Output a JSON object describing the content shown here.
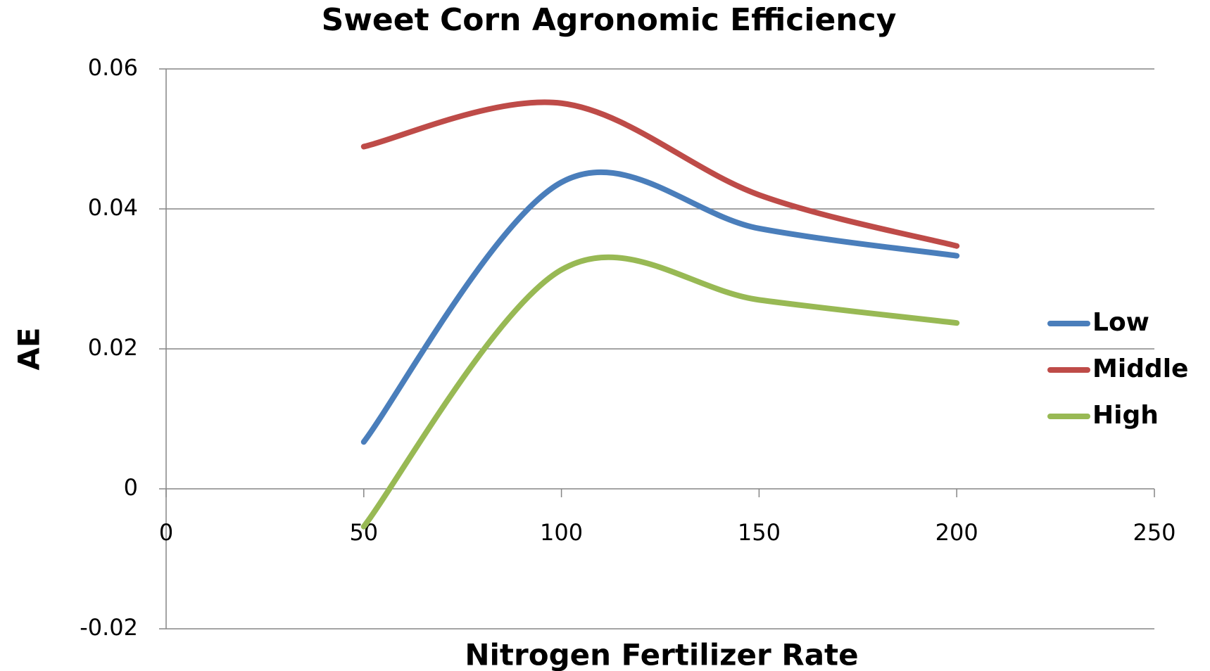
{
  "chart_data": {
    "type": "line",
    "title": "Sweet Corn Agronomic Efficiency",
    "x_label": "Nitrogen Fertilizer Rate",
    "y_label": "AE",
    "x": [
      50,
      100,
      150,
      200
    ],
    "series": [
      {
        "name": "Low",
        "color": "#4a7ebb",
        "values": [
          0.0067,
          0.0438,
          0.0372,
          0.0333
        ]
      },
      {
        "name": "Middle",
        "color": "#be4b48",
        "values": [
          0.0489,
          0.0551,
          0.042,
          0.0347
        ]
      },
      {
        "name": "High",
        "color": "#98b954",
        "values": [
          -0.0054,
          0.0313,
          0.027,
          0.0237
        ]
      }
    ],
    "xlim": [
      0,
      250
    ],
    "xticks": [
      0,
      50,
      100,
      150,
      200,
      250
    ],
    "ylim": [
      -0.02,
      0.06
    ],
    "yticks": [
      -0.02,
      0,
      0.02,
      0.04,
      0.06
    ],
    "grid": true,
    "smooth": true,
    "legend": "right"
  }
}
